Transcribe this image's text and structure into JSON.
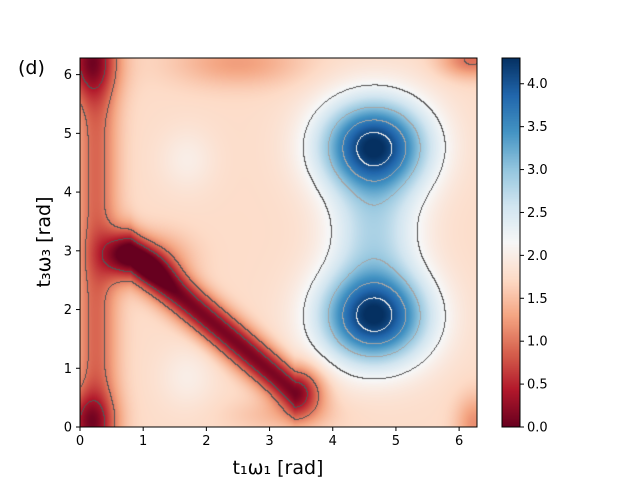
{
  "panel_label": "(d)",
  "chart_data": {
    "type": "heatmap",
    "title": "",
    "xlabel": "t₁ω₁ [rad]",
    "ylabel": "t₃ω₃ [rad]",
    "xlim": [
      0,
      6.283
    ],
    "ylim": [
      0,
      6.283
    ],
    "xticks": [
      0,
      1,
      2,
      3,
      4,
      5,
      6
    ],
    "yticks": [
      0,
      1,
      2,
      3,
      4,
      5,
      6
    ],
    "colormap": "RdBu",
    "colorbar": {
      "min": 0.0,
      "max": 4.3,
      "ticks": [
        "0.0",
        "0.5",
        "1.0",
        "1.5",
        "2.0",
        "2.5",
        "3.0",
        "3.5",
        "4.0"
      ]
    },
    "features": [
      {
        "kind": "maximum",
        "x": 4.65,
        "y": 4.78,
        "value": 4.3
      },
      {
        "kind": "maximum",
        "x": 4.65,
        "y": 1.88,
        "value": 4.3
      },
      {
        "kind": "minimum",
        "x": 1.3,
        "y": 2.85,
        "value": 0.05
      },
      {
        "kind": "local-maximum",
        "x": 1.7,
        "y": 4.55,
        "value": 1.9
      },
      {
        "kind": "local-maximum",
        "x": 1.7,
        "y": 0.85,
        "value": 1.9
      }
    ],
    "contour_levels": [
      0.4,
      1.0,
      2.2,
      3.0,
      3.6,
      4.1
    ],
    "grid": false,
    "legend": "none"
  }
}
